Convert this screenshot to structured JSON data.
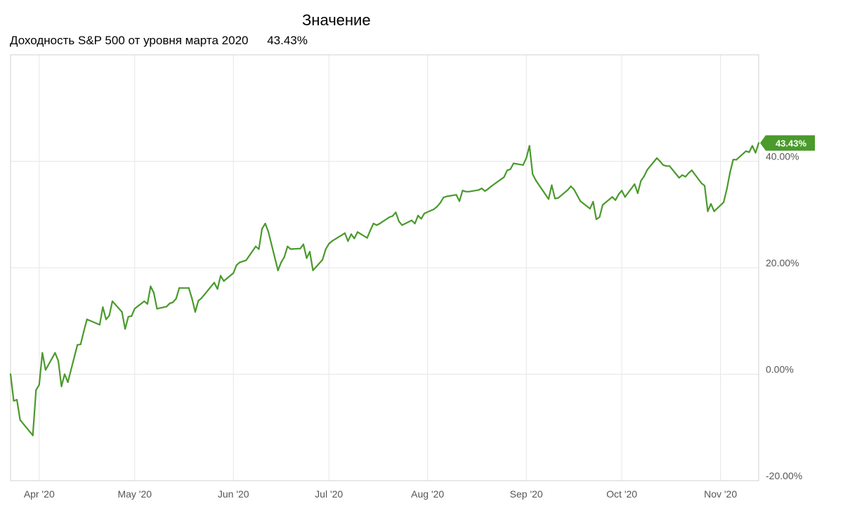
{
  "legend": {
    "header": "Значение",
    "series_label": "Доходность S&P 500 от уровня марта 2020",
    "series_value": "43.43%"
  },
  "chart_data": {
    "type": "line",
    "title": "",
    "xlabel": "",
    "ylabel": "",
    "x_range": [
      "2020-03-23",
      "2020-11-13"
    ],
    "ylim": [
      -20,
      60
    ],
    "y_ticks": [
      {
        "value": -20,
        "label": "-20.00%"
      },
      {
        "value": 0,
        "label": "0.00%"
      },
      {
        "value": 20,
        "label": "20.00%"
      },
      {
        "value": 40,
        "label": "40.00%"
      }
    ],
    "x_ticks": [
      {
        "date": "2020-04-01",
        "label": "Apr '20"
      },
      {
        "date": "2020-05-01",
        "label": "May '20"
      },
      {
        "date": "2020-06-01",
        "label": "Jun '20"
      },
      {
        "date": "2020-07-01",
        "label": "Jul '20"
      },
      {
        "date": "2020-08-01",
        "label": "Aug '20"
      },
      {
        "date": "2020-09-01",
        "label": "Sep '20"
      },
      {
        "date": "2020-10-01",
        "label": "Oct '20"
      },
      {
        "date": "2020-11-01",
        "label": "Nov '20"
      }
    ],
    "grid": true,
    "line_color": "#4a9a2c",
    "last_value_label": "43.43%",
    "series": [
      {
        "points": [
          [
            "2020-03-23",
            0.0
          ],
          [
            "2020-03-24",
            -5.0
          ],
          [
            "2020-03-25",
            -4.8
          ],
          [
            "2020-03-26",
            -8.6
          ],
          [
            "2020-03-30",
            -11.5
          ],
          [
            "2020-03-31",
            -3.0
          ],
          [
            "2020-04-01",
            -2.0
          ],
          [
            "2020-04-02",
            4.0
          ],
          [
            "2020-04-03",
            0.8
          ],
          [
            "2020-04-06",
            4.0
          ],
          [
            "2020-04-07",
            2.5
          ],
          [
            "2020-04-08",
            -2.3
          ],
          [
            "2020-04-09",
            0.0
          ],
          [
            "2020-04-10",
            -1.5
          ],
          [
            "2020-04-13",
            5.5
          ],
          [
            "2020-04-14",
            5.6
          ],
          [
            "2020-04-15",
            8.0
          ],
          [
            "2020-04-16",
            10.3
          ],
          [
            "2020-04-20",
            9.3
          ],
          [
            "2020-04-21",
            12.6
          ],
          [
            "2020-04-22",
            10.3
          ],
          [
            "2020-04-23",
            11.0
          ],
          [
            "2020-04-24",
            13.7
          ],
          [
            "2020-04-27",
            11.7
          ],
          [
            "2020-04-28",
            8.5
          ],
          [
            "2020-04-29",
            10.8
          ],
          [
            "2020-04-30",
            10.9
          ],
          [
            "2020-05-01",
            12.3
          ],
          [
            "2020-05-04",
            13.7
          ],
          [
            "2020-05-05",
            13.2
          ],
          [
            "2020-05-06",
            16.5
          ],
          [
            "2020-05-07",
            15.3
          ],
          [
            "2020-05-08",
            12.3
          ],
          [
            "2020-05-11",
            12.7
          ],
          [
            "2020-05-12",
            13.3
          ],
          [
            "2020-05-13",
            13.5
          ],
          [
            "2020-05-14",
            14.2
          ],
          [
            "2020-05-15",
            16.2
          ],
          [
            "2020-05-18",
            16.2
          ],
          [
            "2020-05-19",
            14.2
          ],
          [
            "2020-05-20",
            11.7
          ],
          [
            "2020-05-21",
            13.8
          ],
          [
            "2020-05-22",
            14.3
          ],
          [
            "2020-05-26",
            17.2
          ],
          [
            "2020-05-27",
            16.0
          ],
          [
            "2020-05-28",
            18.5
          ],
          [
            "2020-05-29",
            17.5
          ],
          [
            "2020-06-01",
            19.0
          ],
          [
            "2020-06-02",
            20.5
          ],
          [
            "2020-06-03",
            21.0
          ],
          [
            "2020-06-04",
            21.2
          ],
          [
            "2020-06-05",
            21.4
          ],
          [
            "2020-06-08",
            24.0
          ],
          [
            "2020-06-09",
            23.5
          ],
          [
            "2020-06-10",
            27.3
          ],
          [
            "2020-06-11",
            28.3
          ],
          [
            "2020-06-12",
            26.7
          ],
          [
            "2020-06-15",
            19.5
          ],
          [
            "2020-06-16",
            21.0
          ],
          [
            "2020-06-17",
            22.0
          ],
          [
            "2020-06-18",
            24.0
          ],
          [
            "2020-06-19",
            23.5
          ],
          [
            "2020-06-22",
            23.6
          ],
          [
            "2020-06-23",
            24.4
          ],
          [
            "2020-06-24",
            21.8
          ],
          [
            "2020-06-25",
            23.0
          ],
          [
            "2020-06-26",
            19.5
          ],
          [
            "2020-06-29",
            21.5
          ],
          [
            "2020-06-30",
            23.5
          ],
          [
            "2020-07-01",
            24.5
          ],
          [
            "2020-07-02",
            25.0
          ],
          [
            "2020-07-06",
            26.5
          ],
          [
            "2020-07-07",
            25.0
          ],
          [
            "2020-07-08",
            26.3
          ],
          [
            "2020-07-09",
            25.5
          ],
          [
            "2020-07-10",
            26.7
          ],
          [
            "2020-07-13",
            25.6
          ],
          [
            "2020-07-14",
            27.0
          ],
          [
            "2020-07-15",
            28.3
          ],
          [
            "2020-07-16",
            28.0
          ],
          [
            "2020-07-17",
            28.3
          ],
          [
            "2020-07-20",
            29.5
          ],
          [
            "2020-07-21",
            29.7
          ],
          [
            "2020-07-22",
            30.4
          ],
          [
            "2020-07-23",
            28.7
          ],
          [
            "2020-07-24",
            28.0
          ],
          [
            "2020-07-27",
            28.9
          ],
          [
            "2020-07-28",
            28.3
          ],
          [
            "2020-07-29",
            29.8
          ],
          [
            "2020-07-30",
            29.2
          ],
          [
            "2020-07-31",
            30.2
          ],
          [
            "2020-08-03",
            31.0
          ],
          [
            "2020-08-04",
            31.5
          ],
          [
            "2020-08-05",
            32.2
          ],
          [
            "2020-08-06",
            33.2
          ],
          [
            "2020-08-07",
            33.4
          ],
          [
            "2020-08-10",
            33.7
          ],
          [
            "2020-08-11",
            32.5
          ],
          [
            "2020-08-12",
            34.5
          ],
          [
            "2020-08-13",
            34.3
          ],
          [
            "2020-08-14",
            34.3
          ],
          [
            "2020-08-17",
            34.6
          ],
          [
            "2020-08-18",
            34.9
          ],
          [
            "2020-08-19",
            34.4
          ],
          [
            "2020-08-20",
            34.8
          ],
          [
            "2020-08-21",
            35.3
          ],
          [
            "2020-08-24",
            36.6
          ],
          [
            "2020-08-25",
            37.0
          ],
          [
            "2020-08-26",
            38.3
          ],
          [
            "2020-08-27",
            38.5
          ],
          [
            "2020-08-28",
            39.6
          ],
          [
            "2020-08-31",
            39.3
          ],
          [
            "2020-09-01",
            40.6
          ],
          [
            "2020-09-02",
            42.9
          ],
          [
            "2020-09-03",
            37.6
          ],
          [
            "2020-09-04",
            36.4
          ],
          [
            "2020-09-08",
            32.9
          ],
          [
            "2020-09-09",
            35.5
          ],
          [
            "2020-09-10",
            33.0
          ],
          [
            "2020-09-11",
            33.1
          ],
          [
            "2020-09-14",
            34.6
          ],
          [
            "2020-09-15",
            35.3
          ],
          [
            "2020-09-16",
            34.7
          ],
          [
            "2020-09-17",
            33.6
          ],
          [
            "2020-09-18",
            32.5
          ],
          [
            "2020-09-21",
            31.1
          ],
          [
            "2020-09-22",
            32.4
          ],
          [
            "2020-09-23",
            29.1
          ],
          [
            "2020-09-24",
            29.5
          ],
          [
            "2020-09-25",
            31.8
          ],
          [
            "2020-09-28",
            33.3
          ],
          [
            "2020-09-29",
            32.7
          ],
          [
            "2020-09-30",
            33.8
          ],
          [
            "2020-10-01",
            34.5
          ],
          [
            "2020-10-02",
            33.3
          ],
          [
            "2020-10-05",
            35.7
          ],
          [
            "2020-10-06",
            34.0
          ],
          [
            "2020-10-07",
            36.3
          ],
          [
            "2020-10-08",
            37.2
          ],
          [
            "2020-10-09",
            38.4
          ],
          [
            "2020-10-12",
            40.6
          ],
          [
            "2020-10-13",
            40.0
          ],
          [
            "2020-10-14",
            39.3
          ],
          [
            "2020-10-15",
            39.1
          ],
          [
            "2020-10-16",
            39.1
          ],
          [
            "2020-10-19",
            36.9
          ],
          [
            "2020-10-20",
            37.4
          ],
          [
            "2020-10-21",
            37.1
          ],
          [
            "2020-10-22",
            37.8
          ],
          [
            "2020-10-23",
            38.3
          ],
          [
            "2020-10-26",
            35.9
          ],
          [
            "2020-10-27",
            35.4
          ],
          [
            "2020-10-28",
            30.6
          ],
          [
            "2020-10-29",
            32.0
          ],
          [
            "2020-10-30",
            30.6
          ],
          [
            "2020-11-02",
            32.3
          ],
          [
            "2020-11-03",
            34.8
          ],
          [
            "2020-11-04",
            37.9
          ],
          [
            "2020-11-05",
            40.3
          ],
          [
            "2020-11-06",
            40.3
          ],
          [
            "2020-11-09",
            41.9
          ],
          [
            "2020-11-10",
            41.7
          ],
          [
            "2020-11-11",
            42.9
          ],
          [
            "2020-11-12",
            41.6
          ],
          [
            "2020-11-13",
            43.43
          ]
        ]
      }
    ]
  }
}
